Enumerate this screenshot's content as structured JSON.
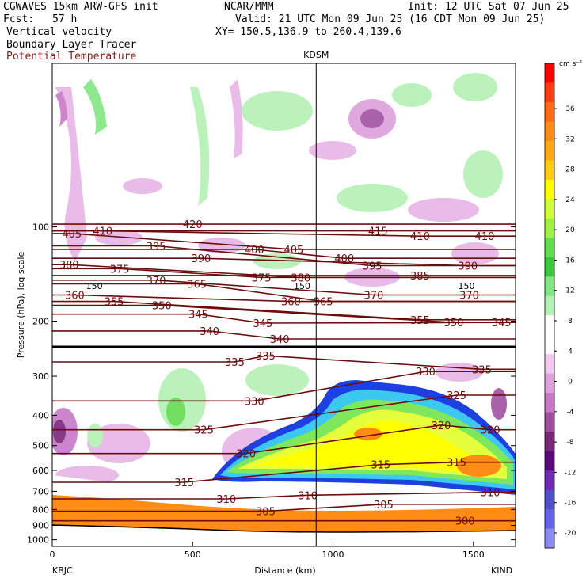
{
  "header": {
    "model": "CGWAVES 15km ARW-GFS init",
    "org": "NCAR/MMM",
    "init": "Init: 12 UTC Sat 07 Jun 25",
    "fcst_label": "Fcst:",
    "fcst_value": "57 h",
    "valid": "Valid: 21 UTC Mon 09 Jun 25 (16 CDT Mon 09 Jun 25)",
    "field1": "Vertical velocity",
    "xy": "XY= 150.5,136.9 to 260.4,139.6",
    "field2": "Boundary Layer Tracer",
    "field3": "Potential Temperature"
  },
  "colors": {
    "theta_contour": "#6b0d0d",
    "terrain": "#ff8c14",
    "tracer_core": "#ffff00",
    "tracer_mid": "#7fe85a",
    "tracer_edge": "#1e40e0"
  },
  "chart_data": {
    "type": "cross-section",
    "station_marker": "KDSM",
    "left_station": "KBJC",
    "right_station": "KIND",
    "xlabel": "Distance (km)",
    "ylabel": "Pressure (hPa), log scale",
    "xlim": [
      0,
      1650
    ],
    "ylim": [
      1050,
      30
    ],
    "y_scale": "log",
    "x_ticks": [
      "0",
      "500",
      "1000",
      "1500"
    ],
    "y_ticks": [
      "100",
      "200",
      "300",
      "400",
      "500",
      "600",
      "700",
      "800",
      "900",
      "1000"
    ],
    "marker_x_km": 940,
    "colorbar": {
      "units": "cm s⁻¹",
      "labels": [
        "36",
        "32",
        "28",
        "24",
        "20",
        "16",
        "12",
        "8",
        "4",
        "0",
        "-4",
        "-8",
        "-12",
        "-16",
        "-20"
      ],
      "colors": [
        "#ff0000",
        "#ff3c14",
        "#ff6a14",
        "#ff8c14",
        "#ffaa14",
        "#ffcc14",
        "#ffff00",
        "#d2ff3c",
        "#a0f046",
        "#64dc50",
        "#3cc83c",
        "#82e682",
        "#b4f0b4",
        "#ffffff",
        "#ffffff",
        "#f0c8f0",
        "#dca0dc",
        "#c878c8",
        "#a050a0",
        "#782878",
        "#5a0a78",
        "#6e28b4",
        "#5050c8",
        "#6464e6",
        "#8c8cf0"
      ]
    },
    "theta_labels": [
      {
        "label": "405",
        "x": 70,
        "p": 105
      },
      {
        "label": "410",
        "x": 180,
        "p": 103
      },
      {
        "label": "420",
        "x": 500,
        "p": 98
      },
      {
        "label": "415",
        "x": 1160,
        "p": 103
      },
      {
        "label": "410",
        "x": 1310,
        "p": 107
      },
      {
        "label": "410",
        "x": 1540,
        "p": 107
      },
      {
        "label": "395",
        "x": 370,
        "p": 115
      },
      {
        "label": "400",
        "x": 720,
        "p": 118
      },
      {
        "label": "405",
        "x": 860,
        "p": 118
      },
      {
        "label": "380",
        "x": 60,
        "p": 132
      },
      {
        "label": "390",
        "x": 530,
        "p": 126
      },
      {
        "label": "400",
        "x": 1040,
        "p": 126
      },
      {
        "label": "395",
        "x": 1140,
        "p": 133
      },
      {
        "label": "390",
        "x": 1480,
        "p": 133
      },
      {
        "label": "375",
        "x": 240,
        "p": 136
      },
      {
        "label": "370",
        "x": 370,
        "p": 148
      },
      {
        "label": "365",
        "x": 515,
        "p": 152
      },
      {
        "label": "375",
        "x": 745,
        "p": 145
      },
      {
        "label": "380",
        "x": 885,
        "p": 145
      },
      {
        "label": "385",
        "x": 1310,
        "p": 143
      },
      {
        "label": "370",
        "x": 1485,
        "p": 165
      },
      {
        "label": "360",
        "x": 80,
        "p": 165
      },
      {
        "label": "355",
        "x": 220,
        "p": 173
      },
      {
        "label": "350",
        "x": 390,
        "p": 178
      },
      {
        "label": "360",
        "x": 850,
        "p": 173
      },
      {
        "label": "365",
        "x": 965,
        "p": 173
      },
      {
        "label": "370",
        "x": 1145,
        "p": 165
      },
      {
        "label": "345",
        "x": 520,
        "p": 190
      },
      {
        "label": "345",
        "x": 750,
        "p": 203
      },
      {
        "label": "355",
        "x": 1310,
        "p": 198
      },
      {
        "label": "350",
        "x": 1430,
        "p": 202
      },
      {
        "label": "345",
        "x": 1600,
        "p": 202
      },
      {
        "label": "340",
        "x": 560,
        "p": 215
      },
      {
        "label": "340",
        "x": 810,
        "p": 228
      },
      {
        "label": "335",
        "x": 650,
        "p": 270
      },
      {
        "label": "335",
        "x": 760,
        "p": 258
      },
      {
        "label": "330",
        "x": 720,
        "p": 360
      },
      {
        "label": "330",
        "x": 1330,
        "p": 290
      },
      {
        "label": "335",
        "x": 1530,
        "p": 285
      },
      {
        "label": "325",
        "x": 540,
        "p": 445
      },
      {
        "label": "325",
        "x": 1440,
        "p": 345
      },
      {
        "label": "320",
        "x": 690,
        "p": 530
      },
      {
        "label": "320",
        "x": 1385,
        "p": 430
      },
      {
        "label": "320",
        "x": 1560,
        "p": 445
      },
      {
        "label": "315",
        "x": 470,
        "p": 655
      },
      {
        "label": "315",
        "x": 1170,
        "p": 575
      },
      {
        "label": "315",
        "x": 1440,
        "p": 565
      },
      {
        "label": "310",
        "x": 620,
        "p": 740
      },
      {
        "label": "310",
        "x": 910,
        "p": 720
      },
      {
        "label": "310",
        "x": 1560,
        "p": 705
      },
      {
        "label": "305",
        "x": 760,
        "p": 810
      },
      {
        "label": "305",
        "x": 1180,
        "p": 770
      },
      {
        "label": "300",
        "x": 1470,
        "p": 870
      }
    ],
    "trop_labels": [
      {
        "label": "150",
        "x": 150,
        "p": 155
      },
      {
        "label": "150",
        "x": 890,
        "p": 155
      },
      {
        "label": "150",
        "x": 1475,
        "p": 155
      }
    ]
  }
}
